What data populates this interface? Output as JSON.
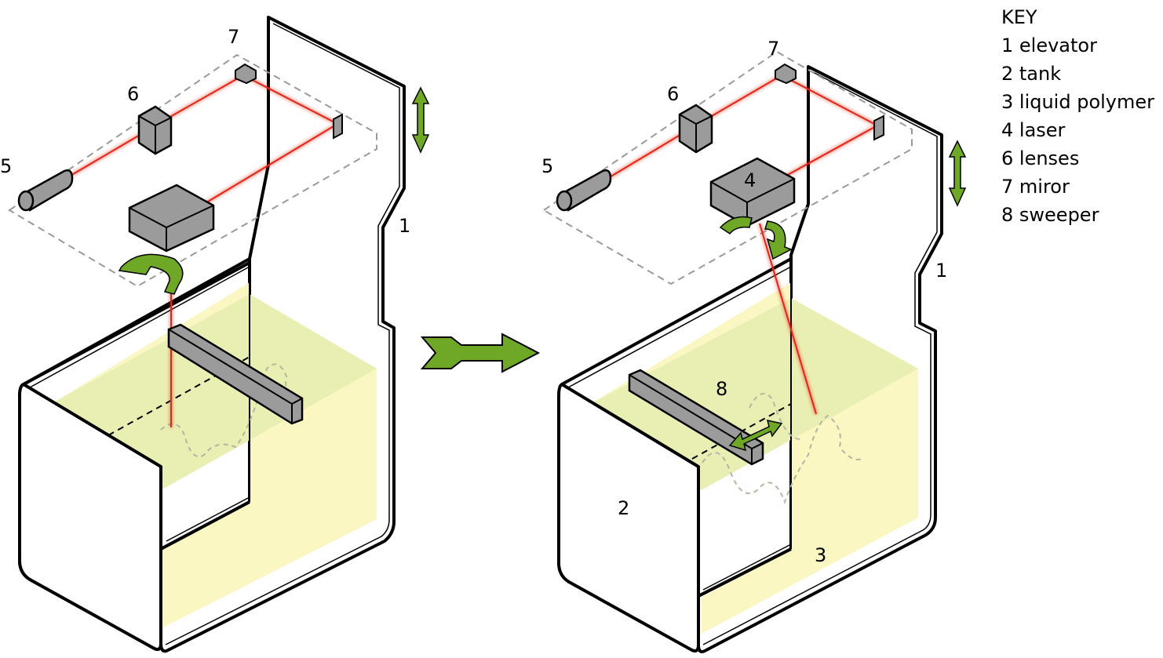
{
  "key": {
    "title": "KEY",
    "items": [
      "1 elevator",
      "2 tank",
      "3 liquid polymer",
      "4 laser",
      "6 lenses",
      "7 miror",
      "8 sweeper"
    ]
  },
  "left_labels": {
    "elevator": "1",
    "laser_source": "5",
    "lenses": "6",
    "mirror": "7"
  },
  "right_labels": {
    "elevator": "1",
    "tank": "2",
    "liquid_polymer": "3",
    "laser": "4",
    "laser_source": "5",
    "lenses": "6",
    "mirror": "7",
    "sweeper": "8"
  },
  "colors": {
    "liquid": "#faf7c3",
    "liquid_top": "#e9efb3",
    "box": "#9b9b9b",
    "laser_beam": "#e42516",
    "arrow": "#6fa826",
    "outline": "#000000",
    "dashed": "#9a9a9a"
  }
}
